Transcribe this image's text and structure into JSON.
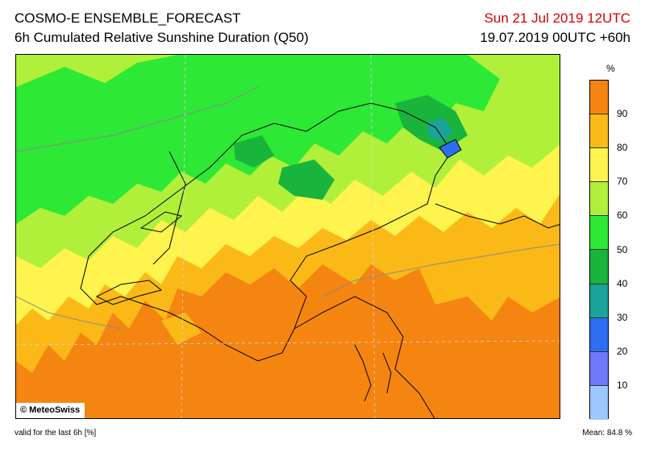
{
  "header": {
    "model": "COSMO-E ENSEMBLE_FORECAST",
    "product": "6h Cumulated Relative Sunshine Duration (Q50)",
    "valid_time": "Sun 21 Jul 2019 12UTC",
    "run": "19.07.2019 00UTC +60h",
    "valid_color": "#d40000"
  },
  "map": {
    "credit": "© MeteoSwiss",
    "field_colors": {
      "90-100": "#f58511",
      "80-90": "#fbb917",
      "70-80": "#fff34d",
      "60-70": "#b0f03a",
      "50-60": "#2de834",
      "40-50": "#18b43c",
      "30-40": "#1aa39a",
      "20-30": "#2d6ef2",
      "10-20": "#6e78f8",
      "0-10": "#9cc7ff"
    }
  },
  "legend": {
    "unit": "%",
    "ticks": [
      "90",
      "80",
      "70",
      "60",
      "50",
      "40",
      "30",
      "20",
      "10"
    ],
    "colors_top_to_bottom": [
      "#f58511",
      "#fbb917",
      "#fff34d",
      "#b0f03a",
      "#2de834",
      "#18b43c",
      "#1aa39a",
      "#2d6ef2",
      "#6e78f8",
      "#9cc7ff"
    ]
  },
  "footer": {
    "note": "valid for the last 6h [%]",
    "mean": "Mean:  84.8 %"
  }
}
